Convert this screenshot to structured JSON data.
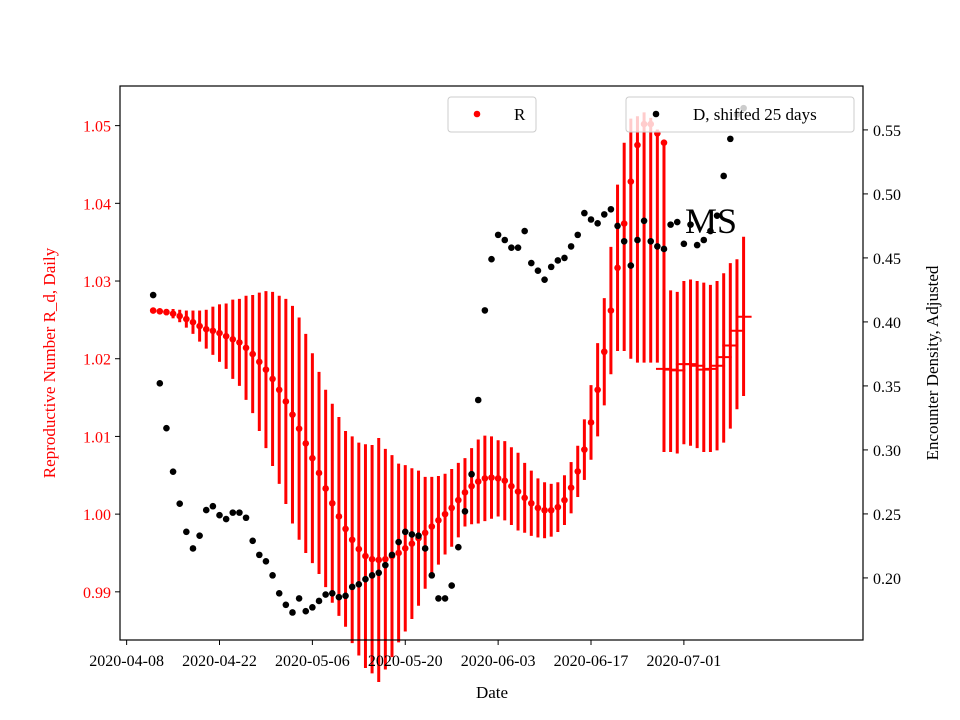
{
  "chart_data": {
    "type": "scatter",
    "title": "",
    "xlabel": "Date",
    "ylabel_left": "Reproductive Number R_d, Daily",
    "ylabel_right": "Encounter Density, Adjusted",
    "annotation": "MS",
    "x_ticks": [
      "2020-04-08",
      "2020-04-22",
      "2020-05-06",
      "2020-05-20",
      "2020-06-03",
      "2020-06-17",
      "2020-07-01"
    ],
    "y_left_ticks": [
      "0.99",
      "1.00",
      "1.01",
      "1.02",
      "1.03",
      "1.04",
      "1.05"
    ],
    "y_right_ticks": [
      "0.20",
      "0.25",
      "0.30",
      "0.35",
      "0.40",
      "0.45",
      "0.50",
      "0.55"
    ],
    "x_range": [
      "2020-04-07T00:00",
      "2020-07-28T00:00"
    ],
    "y_left_range": [
      0.9838,
      1.0551
    ],
    "y_right_range": [
      0.1515,
      0.5843
    ],
    "colors": {
      "R": "#ff0000",
      "D": "#000000"
    },
    "legend": [
      {
        "label": "R",
        "placement": "upper-center",
        "color": "#ff0000"
      },
      {
        "label": "D, shifted 25 days",
        "placement": "upper-right",
        "color": "#000000"
      }
    ],
    "series": [
      {
        "name": "R",
        "axis": "left",
        "start_date": "2020-04-12",
        "step_days": 1,
        "values": [
          1.0262,
          1.0261,
          1.026,
          1.0258,
          1.0255,
          1.0251,
          1.0247,
          1.0242,
          1.0238,
          1.0236,
          1.0233,
          1.0229,
          1.0225,
          1.0221,
          1.0214,
          1.0206,
          1.0196,
          1.0186,
          1.0174,
          1.016,
          1.0145,
          1.0128,
          1.011,
          1.0091,
          1.0072,
          1.0053,
          1.0033,
          1.0014,
          0.9997,
          0.9981,
          0.9967,
          0.9955,
          0.9946,
          0.9942,
          0.9941,
          0.9942,
          0.9946,
          0.995,
          0.9956,
          0.9962,
          0.9969,
          0.9976,
          0.9984,
          0.9992,
          1.0,
          1.0008,
          1.0018,
          1.0028,
          1.0036,
          1.0042,
          1.0046,
          1.0047,
          1.0046,
          1.0043,
          1.0036,
          1.0029,
          1.0021,
          1.0014,
          1.0008,
          1.0005,
          1.0005,
          1.0009,
          1.0018,
          1.0034,
          1.0055,
          1.0083,
          1.0118,
          1.016,
          1.0209,
          1.0262,
          1.0317,
          1.0374,
          1.0428,
          1.0475,
          1.0502,
          1.0502,
          1.049,
          1.0478
        ],
        "err_low": [
          1.0262,
          1.0259,
          1.0256,
          1.0252,
          1.0247,
          1.024,
          1.0232,
          1.0222,
          1.0213,
          1.0205,
          1.0196,
          1.0187,
          1.0174,
          1.0165,
          1.0147,
          1.013,
          1.0107,
          1.0085,
          1.0062,
          1.0039,
          1.0013,
          0.9988,
          0.9967,
          0.995,
          0.9937,
          0.9923,
          0.9906,
          0.9886,
          0.9869,
          0.9855,
          0.9834,
          0.9818,
          0.9802,
          0.9795,
          0.9784,
          0.98,
          0.9816,
          0.9835,
          0.9849,
          0.9865,
          0.9882,
          0.9904,
          0.992,
          0.9935,
          0.9948,
          0.9958,
          0.997,
          0.9984,
          0.9987,
          0.9988,
          0.9991,
          0.9994,
          0.9997,
          0.9992,
          0.9986,
          0.9979,
          0.9976,
          0.9972,
          0.997,
          0.9969,
          0.9971,
          0.9977,
          0.9986,
          1.0001,
          1.0022,
          1.0044,
          1.007,
          1.01,
          1.014,
          1.018,
          1.021,
          1.021,
          1.02,
          1.0195,
          1.0195,
          1.0195,
          1.0195,
          1.0195
        ],
        "err_high": [
          1.0262,
          1.0263,
          1.0264,
          1.0264,
          1.0263,
          1.0262,
          1.0262,
          1.0262,
          1.0263,
          1.0267,
          1.027,
          1.0271,
          1.0276,
          1.0277,
          1.0281,
          1.0282,
          1.0285,
          1.0287,
          1.0286,
          1.0281,
          1.0277,
          1.0268,
          1.0253,
          1.0232,
          1.0207,
          1.0183,
          1.016,
          1.0142,
          1.0125,
          1.0107,
          1.01,
          1.0092,
          1.009,
          1.0089,
          1.0098,
          1.0084,
          1.0076,
          1.0065,
          1.0063,
          1.0059,
          1.0056,
          1.0048,
          1.0048,
          1.0049,
          1.0052,
          1.0058,
          1.0066,
          1.0072,
          1.0085,
          1.0096,
          1.0101,
          1.01,
          1.0095,
          1.0094,
          1.0086,
          1.0079,
          1.0066,
          1.0056,
          1.0046,
          1.0041,
          1.0039,
          1.0041,
          1.005,
          1.0067,
          1.0088,
          1.0122,
          1.0166,
          1.022,
          1.0278,
          1.0344,
          1.0424,
          1.0478,
          1.0509,
          1.0512,
          1.0517,
          1.051,
          1.0495,
          1.048
        ],
        "tail_bars": [
          {
            "x": "2020-06-28",
            "center": 1.0187,
            "low": 1.008,
            "high": 1.029
          },
          {
            "x": "2020-06-29",
            "center": 1.0186,
            "low": 1.008,
            "high": 1.0288
          },
          {
            "x": "2020-06-30",
            "center": 1.0185,
            "low": 1.0078,
            "high": 1.0286
          },
          {
            "x": "2020-07-01",
            "center": 1.0193,
            "low": 1.009,
            "high": 1.03
          },
          {
            "x": "2020-07-02",
            "center": 1.0193,
            "low": 1.0088,
            "high": 1.0302
          },
          {
            "x": "2020-07-03",
            "center": 1.0191,
            "low": 1.0085,
            "high": 1.03
          },
          {
            "x": "2020-07-04",
            "center": 1.0186,
            "low": 1.008,
            "high": 1.0298
          },
          {
            "x": "2020-07-05",
            "center": 1.0187,
            "low": 1.008,
            "high": 1.0295
          },
          {
            "x": "2020-07-06",
            "center": 1.0191,
            "low": 1.0082,
            "high": 1.03
          },
          {
            "x": "2020-07-07",
            "center": 1.0202,
            "low": 1.0092,
            "high": 1.031
          },
          {
            "x": "2020-07-08",
            "center": 1.0217,
            "low": 1.011,
            "high": 1.0323
          },
          {
            "x": "2020-07-09",
            "center": 1.0236,
            "low": 1.0135,
            "high": 1.0328
          },
          {
            "x": "2020-07-10",
            "center": 1.0254,
            "low": 1.0152,
            "high": 1.0357
          }
        ]
      },
      {
        "name": "D, shifted 25 days",
        "axis": "right",
        "points": [
          [
            "2020-04-12",
            0.421
          ],
          [
            "2020-04-13",
            0.352
          ],
          [
            "2020-04-14",
            0.317
          ],
          [
            "2020-04-15",
            0.283
          ],
          [
            "2020-04-16",
            0.258
          ],
          [
            "2020-04-17",
            0.236
          ],
          [
            "2020-04-18",
            0.223
          ],
          [
            "2020-04-19",
            0.233
          ],
          [
            "2020-04-20",
            0.253
          ],
          [
            "2020-04-21",
            0.256
          ],
          [
            "2020-04-22",
            0.249
          ],
          [
            "2020-04-23",
            0.246
          ],
          [
            "2020-04-24",
            0.251
          ],
          [
            "2020-04-25",
            0.251
          ],
          [
            "2020-04-26",
            0.247
          ],
          [
            "2020-04-27",
            0.229
          ],
          [
            "2020-04-28",
            0.218
          ],
          [
            "2020-04-29",
            0.213
          ],
          [
            "2020-04-30",
            0.202
          ],
          [
            "2020-05-01",
            0.188
          ],
          [
            "2020-05-02",
            0.179
          ],
          [
            "2020-05-03",
            0.173
          ],
          [
            "2020-05-04",
            0.184
          ],
          [
            "2020-05-05",
            0.174
          ],
          [
            "2020-05-06",
            0.177
          ],
          [
            "2020-05-07",
            0.182
          ],
          [
            "2020-05-08",
            0.187
          ],
          [
            "2020-05-09",
            0.188
          ],
          [
            "2020-05-10",
            0.185
          ],
          [
            "2020-05-11",
            0.186
          ],
          [
            "2020-05-12",
            0.193
          ],
          [
            "2020-05-13",
            0.195
          ],
          [
            "2020-05-14",
            0.199
          ],
          [
            "2020-05-15",
            0.202
          ],
          [
            "2020-05-16",
            0.204
          ],
          [
            "2020-05-17",
            0.21
          ],
          [
            "2020-05-18",
            0.218
          ],
          [
            "2020-05-19",
            0.228
          ],
          [
            "2020-05-20",
            0.236
          ],
          [
            "2020-05-21",
            0.234
          ],
          [
            "2020-05-22",
            0.233
          ],
          [
            "2020-05-23",
            0.223
          ],
          [
            "2020-05-24",
            0.202
          ],
          [
            "2020-05-25",
            0.184
          ],
          [
            "2020-05-26",
            0.184
          ],
          [
            "2020-05-27",
            0.194
          ],
          [
            "2020-05-28",
            0.224
          ],
          [
            "2020-05-29",
            0.252
          ],
          [
            "2020-05-30",
            0.281
          ],
          [
            "2020-05-31",
            0.339
          ],
          [
            "2020-06-01",
            0.409
          ],
          [
            "2020-06-02",
            0.449
          ],
          [
            "2020-06-03",
            0.468
          ],
          [
            "2020-06-04",
            0.464
          ],
          [
            "2020-06-05",
            0.458
          ],
          [
            "2020-06-06",
            0.458
          ],
          [
            "2020-06-07",
            0.471
          ],
          [
            "2020-06-08",
            0.446
          ],
          [
            "2020-06-09",
            0.44
          ],
          [
            "2020-06-10",
            0.433
          ],
          [
            "2020-06-11",
            0.443
          ],
          [
            "2020-06-12",
            0.448
          ],
          [
            "2020-06-13",
            0.45
          ],
          [
            "2020-06-14",
            0.459
          ],
          [
            "2020-06-15",
            0.468
          ],
          [
            "2020-06-16",
            0.485
          ],
          [
            "2020-06-17",
            0.48
          ],
          [
            "2020-06-18",
            0.477
          ],
          [
            "2020-06-19",
            0.484
          ],
          [
            "2020-06-20",
            0.488
          ],
          [
            "2020-06-21",
            0.475
          ],
          [
            "2020-06-22",
            0.463
          ],
          [
            "2020-06-23",
            0.444
          ],
          [
            "2020-06-24",
            0.464
          ],
          [
            "2020-06-25",
            0.479
          ],
          [
            "2020-06-26",
            0.463
          ],
          [
            "2020-06-27",
            0.459
          ],
          [
            "2020-06-28",
            0.457
          ],
          [
            "2020-06-29",
            0.476
          ],
          [
            "2020-06-30",
            0.478
          ],
          [
            "2020-07-01",
            0.461
          ],
          [
            "2020-07-02",
            0.476
          ],
          [
            "2020-07-03",
            0.46
          ],
          [
            "2020-07-04",
            0.464
          ],
          [
            "2020-07-05",
            0.471
          ],
          [
            "2020-07-06",
            0.483
          ],
          [
            "2020-07-07",
            0.514
          ],
          [
            "2020-07-08",
            0.543
          ],
          [
            "2020-07-09",
            0.562
          ],
          [
            "2020-07-10",
            0.567
          ]
        ]
      }
    ]
  }
}
